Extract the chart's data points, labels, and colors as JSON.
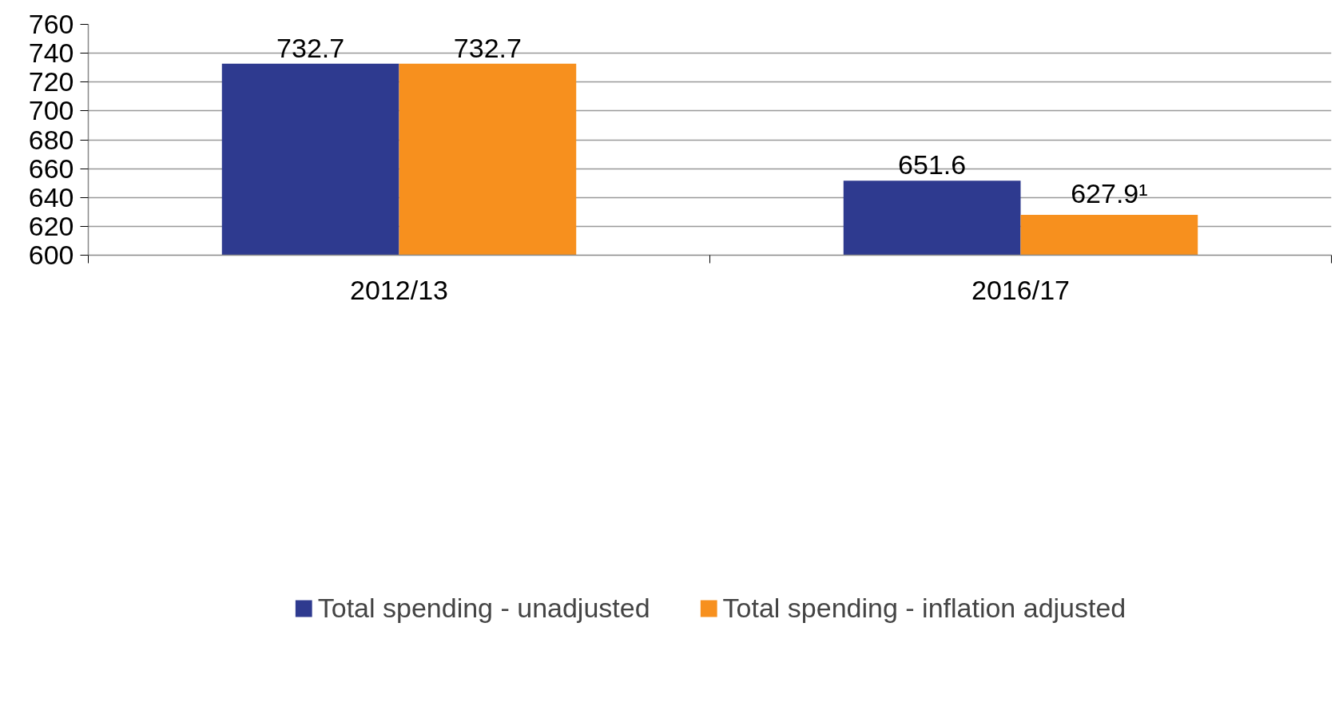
{
  "chart_data": {
    "type": "bar",
    "categories": [
      "2012/13",
      "2016/17"
    ],
    "series": [
      {
        "name": "Total spending - unadjusted",
        "color": "#2e3a8f",
        "values": [
          732.7,
          651.6
        ],
        "value_labels": [
          "732.7",
          "651.6"
        ]
      },
      {
        "name": "Total spending - inflation adjusted",
        "color": "#f7901e",
        "values": [
          732.7,
          627.9
        ],
        "value_labels": [
          "732.7",
          "627.9¹"
        ]
      }
    ],
    "ylim": [
      600,
      760
    ],
    "yticks": [
      600,
      620,
      640,
      660,
      680,
      700,
      720,
      740,
      760
    ],
    "grid": "y",
    "legend": "bottom"
  }
}
